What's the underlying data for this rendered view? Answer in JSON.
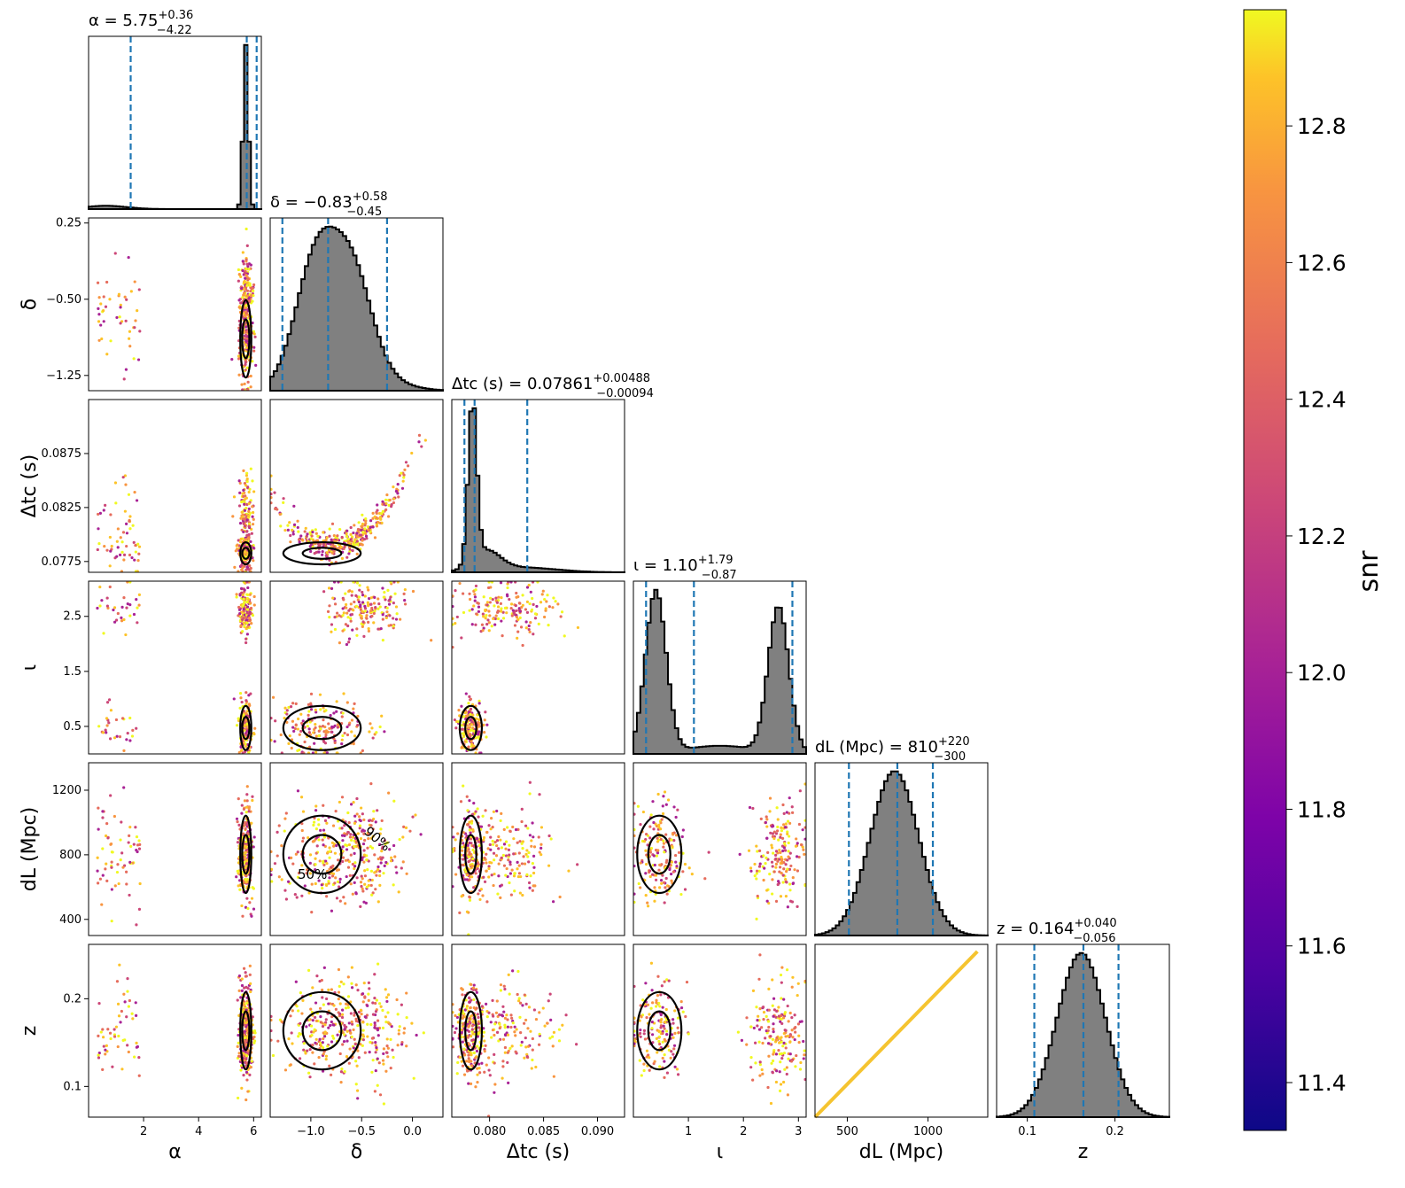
{
  "chart_data": {
    "type": "corner",
    "parameters": [
      {
        "symbol": "α",
        "label": "α",
        "title": "α = 5.75",
        "median": 5.75,
        "plus": "+0.36",
        "minus": "−4.22",
        "range": [
          0,
          6.28
        ],
        "quantiles": [
          1.53,
          5.75,
          6.11
        ]
      },
      {
        "symbol": "δ",
        "label": "δ",
        "title": "δ = −0.83",
        "median": -0.83,
        "plus": "+0.58",
        "minus": "−0.45",
        "range": [
          -1.4,
          0.3
        ],
        "quantiles": [
          -1.28,
          -0.83,
          -0.25
        ]
      },
      {
        "symbol": "Δt_c",
        "label": "Δtc (s)",
        "title": "Δtc (s) = 0.07861",
        "median": 0.07861,
        "plus": "+0.00488",
        "minus": "−0.00094",
        "range": [
          0.0765,
          0.0925
        ],
        "quantiles": [
          0.07767,
          0.07861,
          0.08349
        ]
      },
      {
        "symbol": "ι",
        "label": "ι",
        "title": "ι = 1.10",
        "median": 1.1,
        "plus": "+1.79",
        "minus": "−0.87",
        "range": [
          0.0,
          3.14
        ],
        "quantiles": [
          0.23,
          1.1,
          2.89
        ]
      },
      {
        "symbol": "d_L",
        "label": "dL (Mpc)",
        "title": "dL (Mpc) = 810",
        "median": 810,
        "plus": "+220",
        "minus": "−300",
        "range": [
          300,
          1370
        ],
        "quantiles": [
          510,
          810,
          1030
        ]
      },
      {
        "symbol": "z",
        "label": "z",
        "title": "z = 0.164",
        "median": 0.164,
        "plus": "+0.040",
        "minus": "−0.056",
        "range": [
          0.065,
          0.262
        ],
        "quantiles": [
          0.108,
          0.164,
          0.204
        ]
      }
    ],
    "ticks": {
      "x": [
        {
          "values": [
            2,
            4,
            6
          ],
          "labels": [
            "2",
            "4",
            "6"
          ]
        },
        {
          "values": [
            -1.0,
            -0.5,
            0.0
          ],
          "labels": [
            "−1.0",
            "−0.5",
            "0.0"
          ]
        },
        {
          "values": [
            0.08,
            0.085,
            0.09
          ],
          "labels": [
            "0.080",
            "0.085",
            "0.090"
          ]
        },
        {
          "values": [
            1,
            2,
            3
          ],
          "labels": [
            "1",
            "2",
            "3"
          ]
        },
        {
          "values": [
            500,
            1000
          ],
          "labels": [
            "500",
            "1000"
          ]
        },
        {
          "values": [
            0.1,
            0.2
          ],
          "labels": [
            "0.1",
            "0.2"
          ]
        }
      ],
      "y": [
        null,
        {
          "values": [
            0.25,
            -0.5,
            -1.25
          ],
          "labels": [
            "0.25",
            "−0.50",
            "−1.25"
          ]
        },
        {
          "values": [
            0.0875,
            0.0825,
            0.0775
          ],
          "labels": [
            "0.0875",
            "0.0825",
            "0.0775"
          ]
        },
        {
          "values": [
            2.5,
            1.5,
            0.5
          ],
          "labels": [
            "2.5",
            "1.5",
            "0.5"
          ]
        },
        {
          "values": [
            1200,
            800,
            400
          ],
          "labels": [
            "1200",
            "800",
            "400"
          ]
        },
        {
          "values": [
            0.2,
            0.1
          ],
          "labels": [
            "0.2",
            "0.1"
          ]
        }
      ]
    },
    "contour_levels": [
      "50%",
      "90%"
    ],
    "colorbar": {
      "label": "snr",
      "colormap": "plasma",
      "range": [
        11.33,
        12.97
      ],
      "ticks": [
        "11.4",
        "11.6",
        "11.8",
        "12.0",
        "12.2",
        "12.4",
        "12.6",
        "12.8"
      ],
      "tick_values": [
        11.4,
        11.6,
        11.8,
        12.0,
        12.2,
        12.4,
        12.6,
        12.8
      ]
    },
    "colors": {
      "histogram_fill": "#808080",
      "quantile_line": "#1f77b4",
      "contour": "#000000"
    }
  }
}
